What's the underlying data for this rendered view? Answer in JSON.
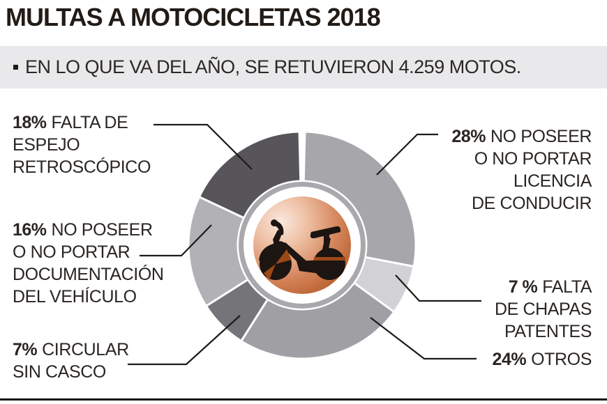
{
  "title": "MULTAS A MOTOCICLETAS 2018",
  "subtitle": {
    "bullet": "▪",
    "text": "EN LO QUE VA DEL AÑO, SE RETUVIERON 4.259 MOTOS."
  },
  "chart_data": {
    "type": "pie",
    "variant": "donut",
    "title": "MULTAS A MOTOCICLETAS 2018",
    "units": "percent",
    "start_angle_deg": 0,
    "direction": "clockwise",
    "total": 100,
    "segments": [
      {
        "label": "NO POSEER O NO PORTAR LICENCIA DE CONDUCIR",
        "value_pct": 28,
        "color": "#a7a6ab"
      },
      {
        "label": "FALTA DE CHAPAS PATENTES",
        "value_pct": 7,
        "color": "#d2d1d5"
      },
      {
        "label": "OTROS",
        "value_pct": 24,
        "color": "#a09fa4"
      },
      {
        "label": "CIRCULAR SIN CASCO",
        "value_pct": 7,
        "color": "#757479"
      },
      {
        "label": "NO POSEER O NO PORTAR DOCUMENTACIÓN DEL VEHÍCULO",
        "value_pct": 16,
        "color": "#b2b1b6"
      },
      {
        "label": "FALTA DE ESPEJO RETROSCÓPICO",
        "value_pct": 18,
        "color": "#57555a"
      }
    ],
    "center": {
      "icon": "moped-icon",
      "disc_gradient": [
        "#fae8de",
        "#eec0a4",
        "#d4845a",
        "#b65c2b",
        "#9c4818"
      ],
      "ring_color": "#ffffff",
      "rim_color": "#a9a8ad",
      "icon_color": "#1c1511"
    }
  },
  "callouts": {
    "espejo": {
      "pct": "18%",
      "lines": [
        "FALTA DE",
        "ESPEJO",
        "RETROSCÓPICO"
      ]
    },
    "documentacion": {
      "pct": "16%",
      "lines": [
        "NO POSEER",
        "O NO PORTAR",
        "DOCUMENTACIÓN",
        "DEL VEHÍCULO"
      ]
    },
    "casco": {
      "pct": "7%",
      "lines": [
        "CIRCULAR",
        "SIN CASCO"
      ]
    },
    "licencia": {
      "pct": "28%",
      "lines": [
        "NO POSEER",
        "O NO PORTAR",
        "LICENCIA",
        "DE CONDUCIR"
      ]
    },
    "chapas": {
      "pct": "7 %",
      "lines": [
        "FALTA",
        "DE CHAPAS",
        "PATENTES"
      ]
    },
    "otros": {
      "pct": "24%",
      "lines": [
        "OTROS"
      ]
    }
  }
}
